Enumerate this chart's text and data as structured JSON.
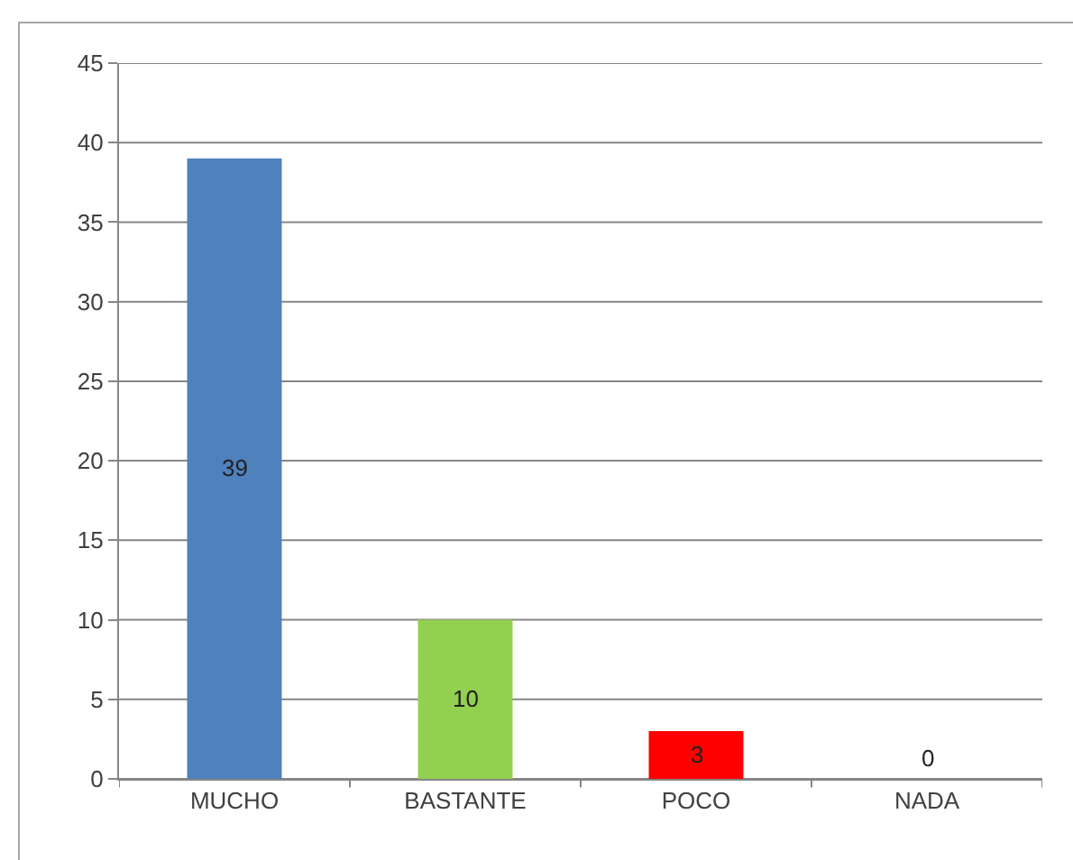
{
  "chart_data": {
    "type": "bar",
    "categories": [
      "MUCHO",
      "BASTANTE",
      "POCO",
      "NADA"
    ],
    "values": [
      39,
      10,
      3,
      0
    ],
    "colors": [
      "#4f81bd",
      "#92d050",
      "#ff0000",
      "#4f81bd"
    ],
    "ylim": [
      0,
      45
    ],
    "yticks": [
      0,
      5,
      10,
      15,
      20,
      25,
      30,
      35,
      40,
      45
    ],
    "grid": "y",
    "data_labels": true
  }
}
